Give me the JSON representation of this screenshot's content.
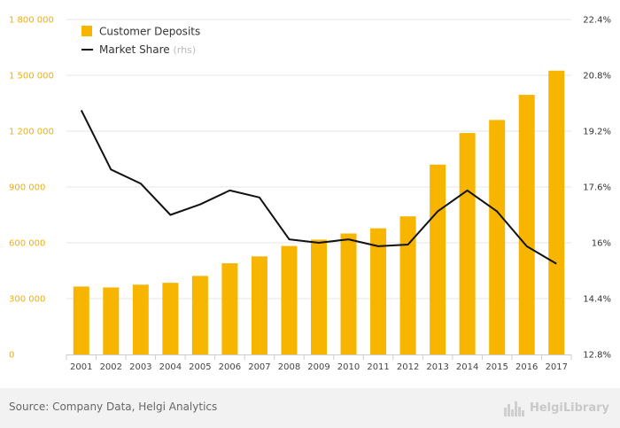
{
  "chart_data": {
    "type": "bar",
    "categories": [
      "2001",
      "2002",
      "2003",
      "2004",
      "2005",
      "2006",
      "2007",
      "2008",
      "2009",
      "2010",
      "2011",
      "2012",
      "2013",
      "2014",
      "2015",
      "2016",
      "2017"
    ],
    "series": [
      {
        "name": "Customer Deposits",
        "type": "bar",
        "axis": "left",
        "color": "#f7b500",
        "values": [
          365000,
          360000,
          375000,
          385000,
          422000,
          490000,
          527000,
          583000,
          617000,
          650000,
          678000,
          742000,
          1020000,
          1190000,
          1260000,
          1395000,
          1525000
        ]
      },
      {
        "name": "Market Share",
        "legend_note": "(rhs)",
        "type": "line",
        "axis": "right",
        "color": "#111111",
        "values": [
          19.8,
          18.1,
          17.7,
          16.8,
          17.1,
          17.5,
          17.3,
          16.1,
          16.0,
          16.1,
          15.9,
          15.95,
          16.9,
          17.5,
          16.9,
          15.9,
          15.4
        ]
      }
    ],
    "y_left": {
      "ylim": [
        0,
        1800000
      ],
      "ticks": [
        0,
        300000,
        600000,
        900000,
        1200000,
        1500000,
        1800000
      ],
      "tick_labels": [
        "0",
        "300 000",
        "600 000",
        "900 000",
        "1 200 000",
        "1 500 000",
        "1 800 000"
      ]
    },
    "y_right": {
      "ylim": [
        12.8,
        22.4
      ],
      "ticks": [
        12.8,
        14.4,
        16.0,
        17.6,
        19.2,
        20.8,
        22.4
      ],
      "tick_labels": [
        "12.8%",
        "14.4%",
        "16%",
        "17.6%",
        "19.2%",
        "20.8%",
        "22.4%"
      ]
    },
    "grid": true,
    "legend": "top-left"
  },
  "source": "Source: Company Data, Helgi Analytics",
  "brand": {
    "name": "HelgiLibrary",
    "icon": "city-skyline-icon"
  }
}
